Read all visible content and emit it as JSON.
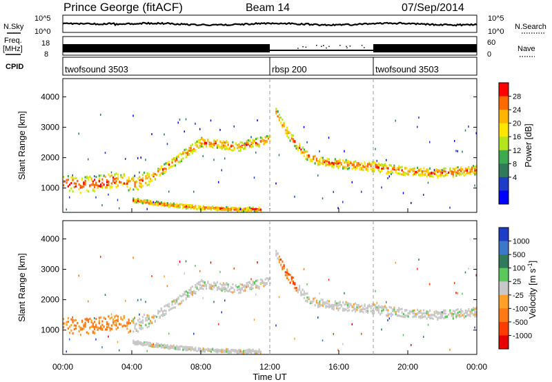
{
  "header": {
    "station": "Prince George (fitACF)",
    "beam": "Beam 14",
    "date": "07/Sep/2014"
  },
  "noise_panel": {
    "left_label": "N.Sky",
    "right_label": "N.Search",
    "left_ticks": [
      "10^5",
      "10^0"
    ],
    "right_ticks": [
      "10^5",
      "10^0"
    ]
  },
  "freq_panel": {
    "left_label_top": "Freq.",
    "left_label_unit": "[MHz]",
    "right_label": "Nave",
    "left_ticks": [
      "18",
      "8"
    ],
    "right_ticks": [
      "60",
      "0"
    ]
  },
  "cpid_panel": {
    "label": "CPID",
    "segments": [
      {
        "start_hour": 0,
        "end_hour": 12,
        "name": "twofsound 3503"
      },
      {
        "start_hour": 12,
        "end_hour": 18,
        "name": "rbsp 200"
      },
      {
        "start_hour": 18,
        "end_hour": 24,
        "name": "twofsound 3503"
      }
    ]
  },
  "chart_data": [
    {
      "type": "heatmap",
      "name": "power",
      "ylabel": "Slant Range [km]",
      "yticks": [
        1000,
        2000,
        3000,
        4000
      ],
      "ylim": [
        200,
        4600
      ],
      "xlim": [
        0,
        24
      ],
      "colorbar": {
        "label": "Power [dB]",
        "ticks": [
          "28",
          "24",
          "20",
          "16",
          "12",
          "8",
          "4"
        ],
        "colors": [
          "#ff0000",
          "#ff6a00",
          "#ffb400",
          "#ffe600",
          "#b4e61e",
          "#3caa50",
          "#2f7a5a",
          "#1e3cc8",
          "#0000ff"
        ]
      },
      "echo_bands": [
        {
          "x": [
            0,
            1,
            2,
            3,
            4,
            5,
            6,
            7,
            8,
            9,
            10,
            11,
            12
          ],
          "y": [
            1200,
            1100,
            1150,
            1250,
            1150,
            1300,
            1700,
            2100,
            2500,
            2450,
            2350,
            2450,
            2600
          ]
        },
        {
          "x": [
            12.3,
            13,
            14,
            15,
            16,
            17,
            18,
            19,
            20,
            21,
            22,
            23,
            24
          ],
          "y": [
            3500,
            2800,
            2100,
            1850,
            1800,
            1750,
            1700,
            1600,
            1550,
            1500,
            1500,
            1550,
            1600
          ]
        },
        {
          "x": [
            4,
            6,
            8,
            10,
            11.5
          ],
          "y": [
            600,
            450,
            350,
            300,
            300
          ]
        }
      ]
    },
    {
      "type": "heatmap",
      "name": "velocity",
      "xlabel": "Time UT",
      "ylabel": "Slant Range [km]",
      "yticks": [
        1000,
        2000,
        3000,
        4000
      ],
      "ylim": [
        200,
        4600
      ],
      "xlim": [
        0,
        24
      ],
      "xticks": [
        "00:00",
        "04:00",
        "08:00",
        "12:00",
        "16:00",
        "20:00",
        "00:00"
      ],
      "colorbar": {
        "label": "Velocity [m s-1]",
        "ticks": [
          "1000",
          "500",
          "100",
          "25",
          "-25",
          "-100",
          "-500",
          "-1000"
        ],
        "colors": [
          "#1e3cc8",
          "#3c78c8",
          "#2f7a5a",
          "#5ac85a",
          "#c8c8c8",
          "#ffa028",
          "#ff7814",
          "#ff3c00",
          "#e60000"
        ]
      }
    }
  ]
}
